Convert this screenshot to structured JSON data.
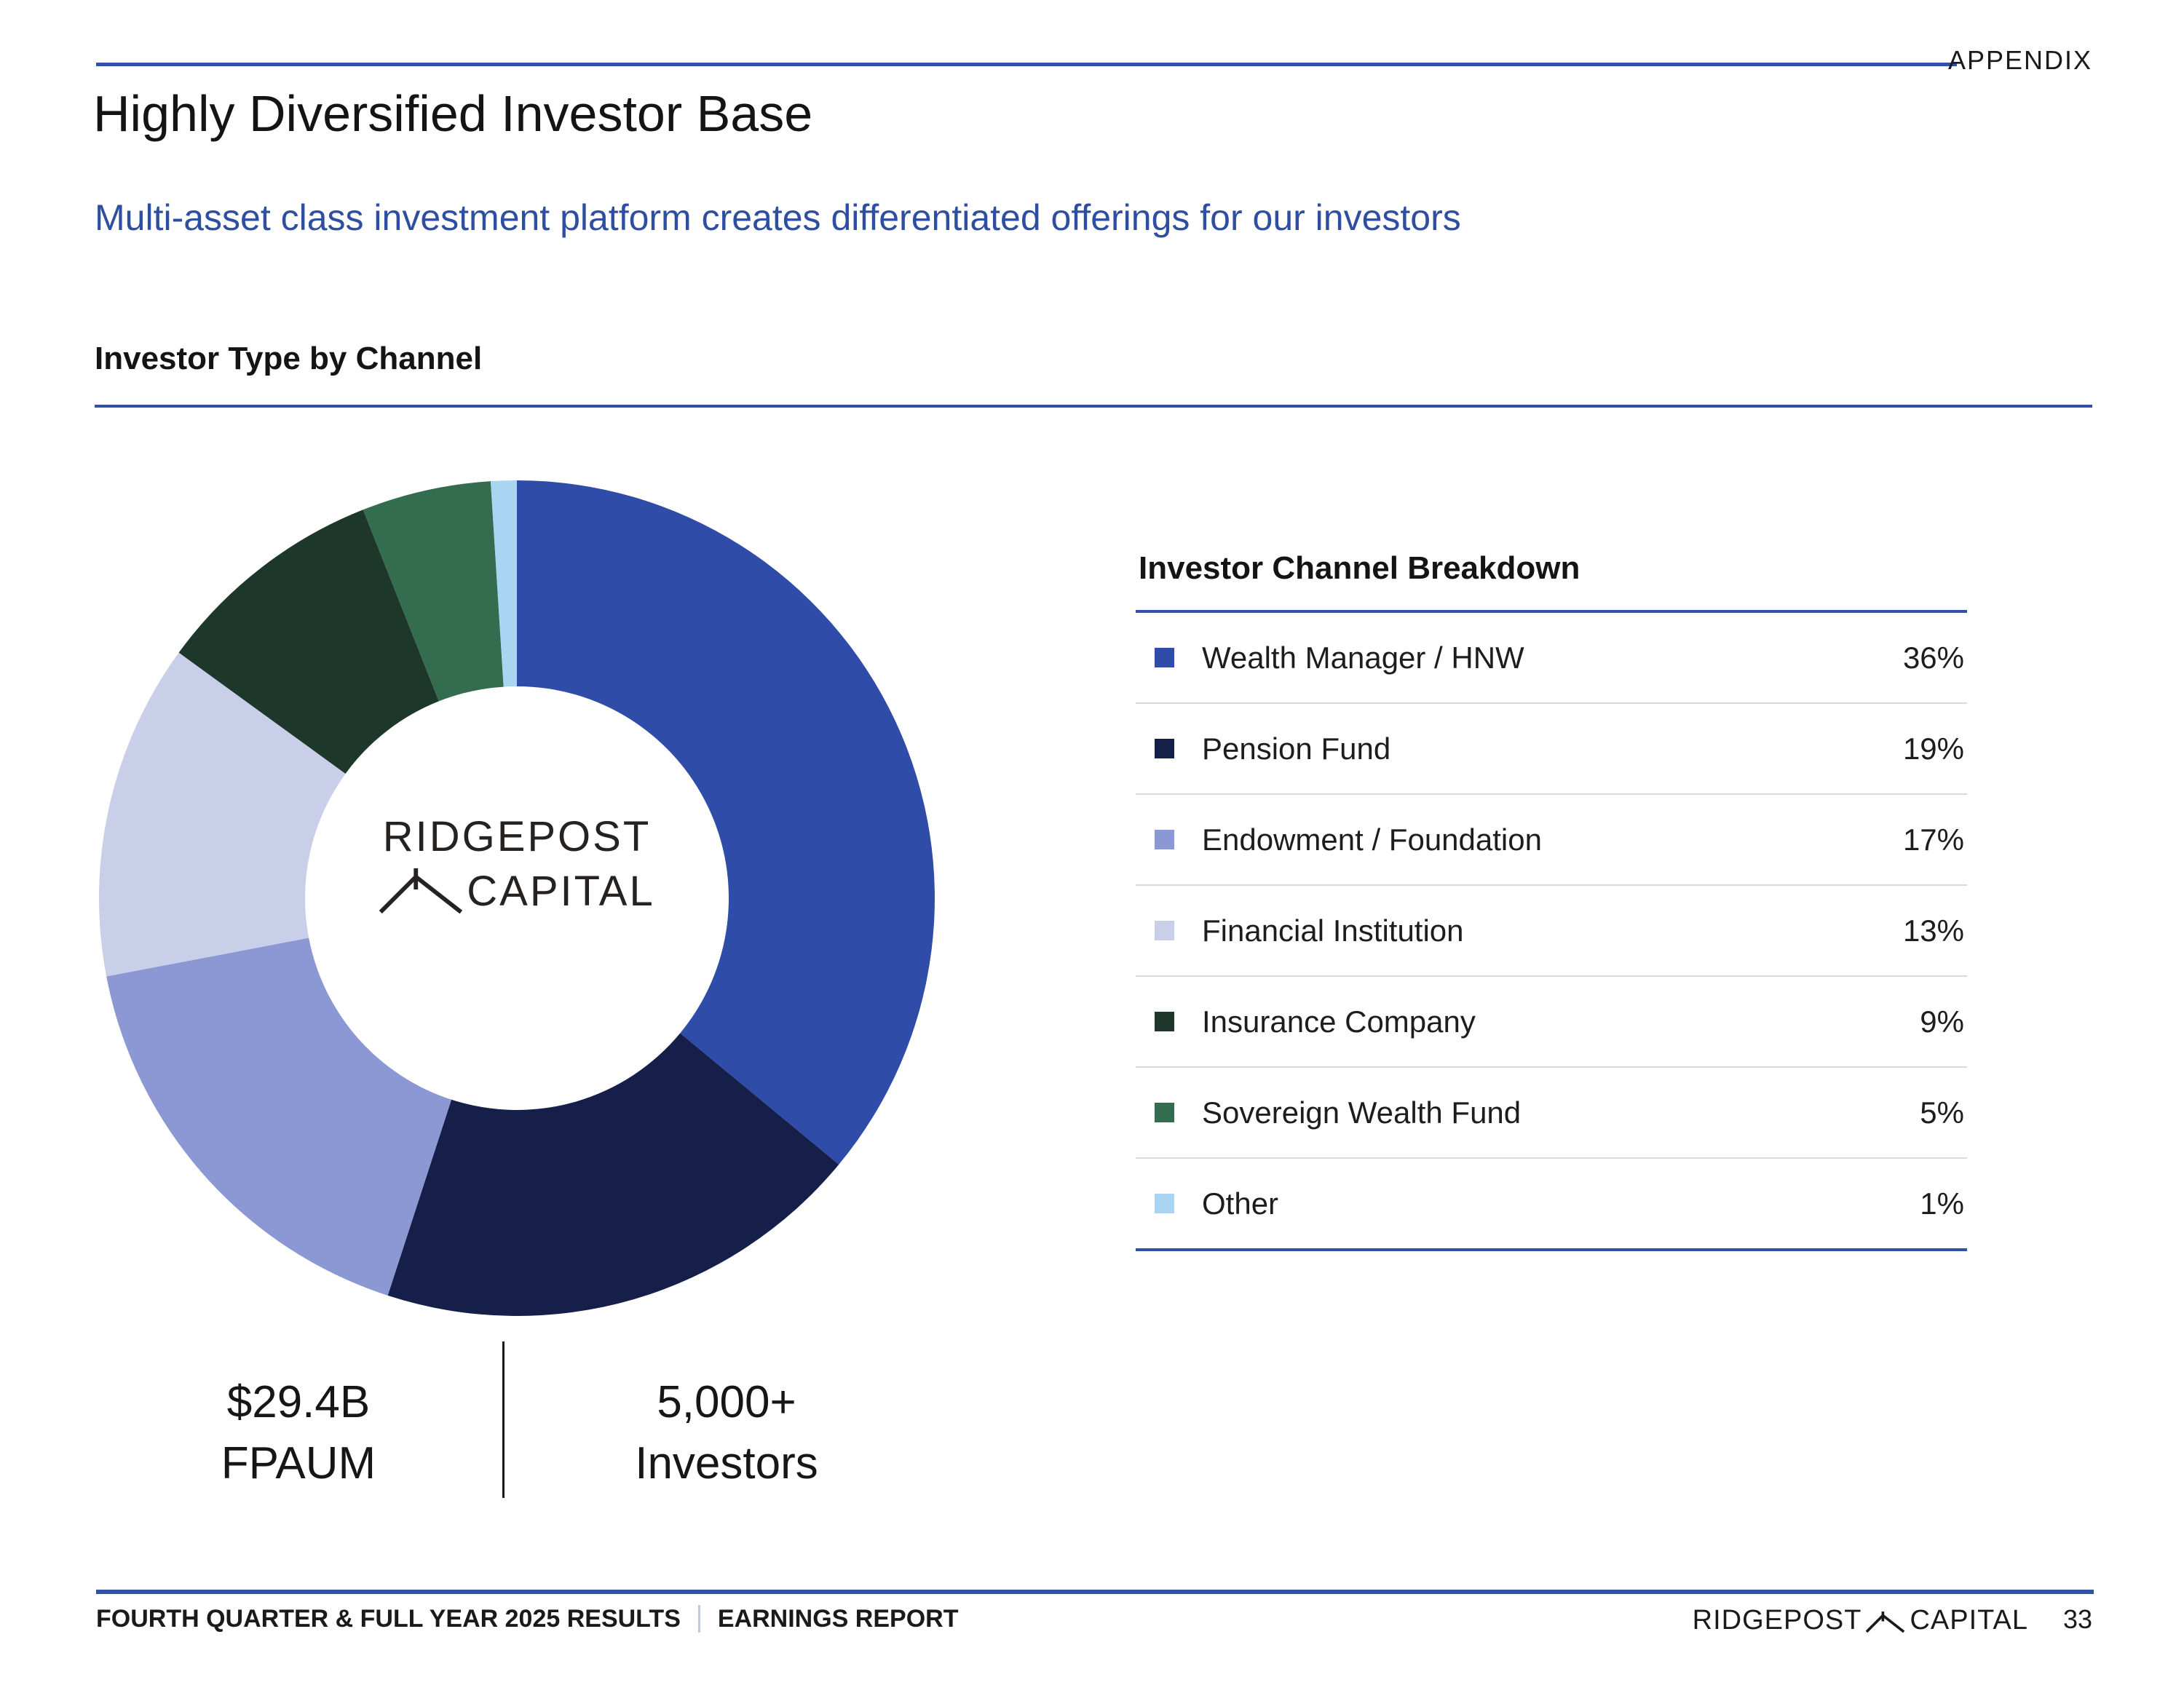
{
  "slide": {
    "tag": "APPENDIX",
    "title": "Highly Diversified Investor Base",
    "subtitle": "Multi-asset class investment platform creates differentiated offerings for our investors",
    "section_heading": "Investor Type by Channel"
  },
  "chart_data": {
    "type": "pie",
    "subtype": "donut",
    "title": "Investor Type by Channel",
    "legend_title": "Investor Channel Breakdown",
    "start_angle_deg": 0,
    "direction": "clockwise",
    "unit": "%",
    "categories": [
      "Wealth Manager / HNW",
      "Pension Fund",
      "Endowment / Foundation",
      "Financial Institution",
      "Insurance Company",
      "Sovereign Wealth Fund",
      "Other"
    ],
    "values": [
      36,
      19,
      17,
      13,
      9,
      5,
      1
    ],
    "colors": [
      "#2F4CA8",
      "#161F4A",
      "#8C98D4",
      "#C9CEE9",
      "#1D382B",
      "#336C4F",
      "#A9D4F2"
    ],
    "center_label": {
      "line1": "RIDGEPOST",
      "line2": "CAPITAL"
    }
  },
  "stats": [
    {
      "value": "$29.4B",
      "label": "FPAUM"
    },
    {
      "value": "5,000+",
      "label": "Investors"
    }
  ],
  "footer": {
    "left_primary": "FOURTH QUARTER & FULL YEAR 2025 RESULTS",
    "left_secondary": "EARNINGS REPORT",
    "brand_left": "RIDGEPOST",
    "brand_right": "CAPITAL",
    "page_number": "33"
  },
  "theme": {
    "rule_blue": "#3351A4",
    "subtitle_blue": "#2E4EA1",
    "text_dark": "#1A1A1A",
    "separator_gray": "#DADADA",
    "logo_dark": "#262220"
  }
}
